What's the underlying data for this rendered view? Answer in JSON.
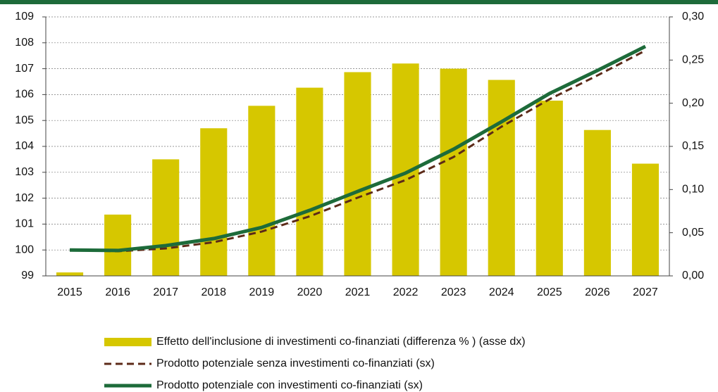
{
  "chart_data": {
    "type": "bar",
    "categories": [
      "2015",
      "2016",
      "2017",
      "2018",
      "2019",
      "2020",
      "2021",
      "2022",
      "2023",
      "2024",
      "2025",
      "2026",
      "2027"
    ],
    "series": [
      {
        "name": "Effetto dell'inclusione di investimenti co-finanziati (differenza % ) (asse dx)",
        "type": "bar",
        "axis": "y2",
        "color": "#d6c700",
        "values": [
          0.004,
          0.071,
          0.135,
          0.171,
          0.197,
          0.218,
          0.236,
          0.246,
          0.24,
          0.227,
          0.203,
          0.169,
          0.13
        ]
      },
      {
        "name": "Prodotto potenziale senza investimenti co-finanziati (sx)",
        "type": "line",
        "line_style": "dashed",
        "color": "#5c2a18",
        "values": [
          100.0,
          99.95,
          100.06,
          100.3,
          100.71,
          101.3,
          102.02,
          102.7,
          103.59,
          104.76,
          105.82,
          106.74,
          107.7
        ]
      },
      {
        "name": "Prodotto potenziale con investimenti co-finanziati (sx)",
        "type": "line",
        "line_style": "solid",
        "color": "#1d6b3a",
        "values": [
          100.0,
          99.98,
          100.17,
          100.44,
          100.87,
          101.53,
          102.26,
          102.97,
          103.89,
          104.95,
          106.04,
          106.93,
          107.86
        ]
      }
    ],
    "ylim": [
      99,
      109
    ],
    "yticks": [
      99,
      100,
      101,
      102,
      103,
      104,
      105,
      106,
      107,
      108,
      109
    ],
    "y2lim": [
      0,
      0.3
    ],
    "y2ticks": [
      {
        "value": 0,
        "label": "0,00"
      },
      {
        "value": 0.05,
        "label": "0,05"
      },
      {
        "value": 0.1,
        "label": "0,10"
      },
      {
        "value": 0.15,
        "label": "0,15"
      },
      {
        "value": 0.2,
        "label": "0,20"
      },
      {
        "value": 0.25,
        "label": "0,25"
      },
      {
        "value": 0.3,
        "label": "0,30"
      }
    ],
    "grid": true,
    "legend": "bottom"
  }
}
